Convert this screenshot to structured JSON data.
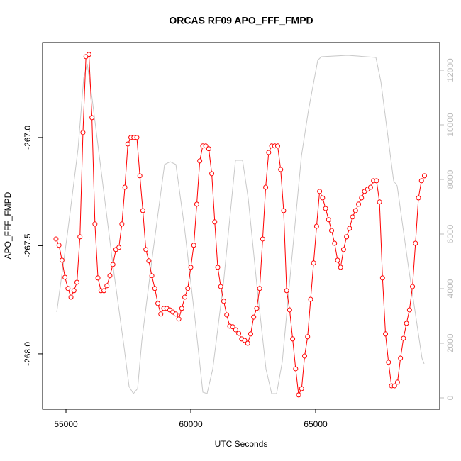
{
  "chart_data": {
    "type": "line",
    "title": "ORCAS RF09 APO_FFF_FMPD",
    "x_label": "UTC Seconds",
    "y_label": "APO_FFF_FMPD",
    "xlim": [
      54062,
      69972
    ],
    "xticks": [
      55000,
      60000,
      65000
    ],
    "ylim": [
      -268.256,
      -266.561
    ],
    "yticks": [
      {
        "value": -268,
        "label": "-268.0"
      },
      -267.5,
      {
        "value": -267,
        "label": "-267.0"
      }
    ],
    "y2lim": [
      -416,
      13013
    ],
    "y2ticks": [
      0,
      2000,
      4000,
      6000,
      8000,
      10000,
      12000
    ],
    "series": [
      {
        "color": "#ff0000",
        "markers": true,
        "x": [
          54600,
          54720,
          54840,
          54960,
          55080,
          55200,
          55320,
          55440,
          55560,
          55680,
          55800,
          55920,
          56040,
          56160,
          56280,
          56400,
          56520,
          56640,
          56760,
          56880,
          57000,
          57120,
          57240,
          57360,
          57480,
          57600,
          57720,
          57840,
          57960,
          58080,
          58200,
          58320,
          58440,
          58560,
          58680,
          58800,
          58920,
          59040,
          59160,
          59280,
          59400,
          59520,
          59640,
          59760,
          59880,
          60000,
          60120,
          60240,
          60360,
          60480,
          60600,
          60720,
          60840,
          60960,
          61080,
          61200,
          61320,
          61440,
          61560,
          61680,
          61800,
          61920,
          62040,
          62160,
          62280,
          62400,
          62520,
          62640,
          62760,
          62880,
          63000,
          63120,
          63240,
          63360,
          63480,
          63600,
          63720,
          63840,
          63960,
          64080,
          64200,
          64320,
          64440,
          64560,
          64680,
          64800,
          64920,
          65040,
          65160,
          65280,
          65400,
          65520,
          65640,
          65760,
          65880,
          66000,
          66120,
          66240,
          66360,
          66480,
          66600,
          66720,
          66840,
          66960,
          67080,
          67200,
          67320,
          67440,
          67560,
          67680,
          67800,
          67920,
          68040,
          68160,
          68280,
          68400,
          68520,
          68640,
          68760,
          68880,
          69000,
          69120,
          69240,
          69360
        ],
        "values": [
          -267.469,
          -267.498,
          -267.567,
          -267.646,
          -267.698,
          -267.738,
          -267.708,
          -267.669,
          -267.459,
          -266.977,
          -266.626,
          -266.616,
          -266.908,
          -267.4,
          -267.649,
          -267.708,
          -267.708,
          -267.685,
          -267.639,
          -267.587,
          -267.518,
          -267.508,
          -267.4,
          -267.23,
          -267.03,
          -267,
          -267,
          -267,
          -267.177,
          -267.338,
          -267.518,
          -267.57,
          -267.639,
          -267.698,
          -267.767,
          -267.816,
          -267.79,
          -267.79,
          -267.797,
          -267.807,
          -267.816,
          -267.839,
          -267.79,
          -267.738,
          -267.698,
          -267.6,
          -267.498,
          -267.308,
          -267.108,
          -267.039,
          -267.039,
          -267.052,
          -267.167,
          -267.39,
          -267.6,
          -267.689,
          -267.757,
          -267.82,
          -267.872,
          -267.875,
          -267.889,
          -267.905,
          -267.931,
          -267.938,
          -267.951,
          -267.908,
          -267.83,
          -267.79,
          -267.698,
          -267.469,
          -267.23,
          -267.069,
          -267.039,
          -267.039,
          -267.039,
          -267.148,
          -267.338,
          -267.708,
          -267.797,
          -267.931,
          -268.069,
          -268.19,
          -268.161,
          -268.01,
          -267.921,
          -267.748,
          -267.58,
          -267.41,
          -267.249,
          -267.279,
          -267.328,
          -267.38,
          -267.43,
          -267.489,
          -267.567,
          -267.6,
          -267.518,
          -267.459,
          -267.42,
          -267.367,
          -267.338,
          -267.308,
          -267.279,
          -267.249,
          -267.239,
          -267.23,
          -267.2,
          -267.2,
          -267.298,
          -267.649,
          -267.908,
          -268.039,
          -268.148,
          -268.148,
          -268.131,
          -268.02,
          -267.928,
          -267.859,
          -267.797,
          -267.689,
          -267.489,
          -267.279,
          -267.2,
          -267.177
        ]
      },
      {
        "color": "#c8c8c8",
        "axis": "y2",
        "markers": false,
        "x": [
          54631,
          55057,
          55483,
          55710,
          55852,
          56051,
          56477,
          56903,
          57330,
          57528,
          57699,
          57870,
          58040,
          58466,
          58949,
          59176,
          59404,
          59744,
          60170,
          60483,
          60653,
          60881,
          61307,
          61790,
          62074,
          62301,
          62642,
          63011,
          63239,
          63438,
          63665,
          64006,
          64432,
          64716,
          65086,
          65228,
          66279,
          67415,
          67614,
          68125,
          68267,
          68693,
          69261,
          69347
        ],
        "values": [
          3143,
          6000,
          9117,
          11714,
          12234,
          10935,
          7818,
          4701,
          1844,
          416,
          156,
          338,
          2104,
          5221,
          8545,
          8649,
          8545,
          6260,
          2883,
          208,
          156,
          1065,
          4182,
          8701,
          8701,
          7299,
          4182,
          1065,
          156,
          156,
          1325,
          4701,
          8857,
          10545,
          12364,
          12494,
          12545,
          12468,
          11584,
          7948,
          7766,
          4961,
          1455,
          1247
        ]
      }
    ]
  }
}
